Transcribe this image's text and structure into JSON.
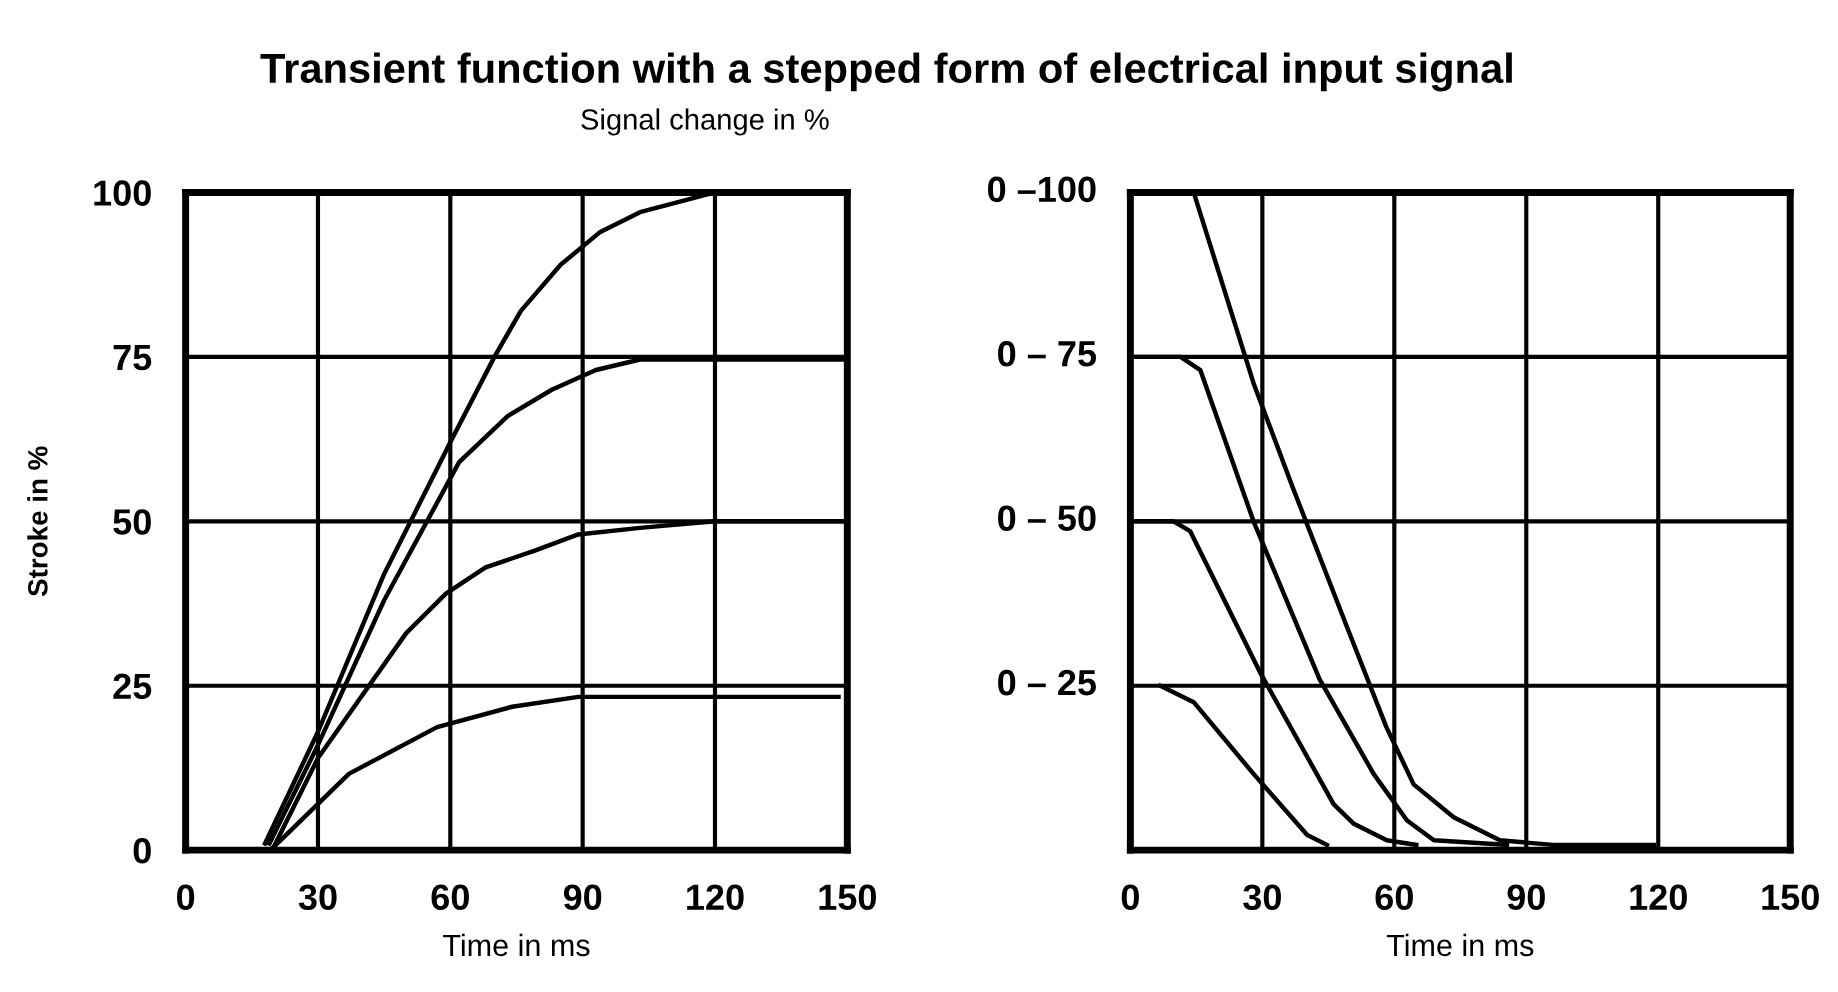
{
  "chart_data": [
    {
      "type": "line",
      "title": "Transient function with a stepped form of electrical input signal",
      "subtitle": "Signal change in %",
      "xlabel": "Time in ms",
      "ylabel": "Stroke in %",
      "xlim": [
        0,
        150
      ],
      "ylim": [
        0,
        100
      ],
      "xticks": [
        0,
        30,
        60,
        90,
        120,
        150
      ],
      "yticks": [
        0,
        25,
        50,
        75,
        100
      ],
      "grid": true,
      "legend": false,
      "marker": "none",
      "line_style": "solid",
      "series": [
        {
          "color": "#000000",
          "x": [
            18,
            30,
            45,
            60,
            70,
            76,
            85,
            94,
            103,
            120,
            150
          ],
          "values": [
            1,
            18,
            42,
            62,
            75,
            82,
            89,
            94,
            97,
            100,
            100
          ]
        },
        {
          "color": "#000000",
          "x": [
            19,
            30,
            45,
            62,
            73,
            83,
            93,
            103,
            150
          ],
          "values": [
            1,
            16,
            38,
            59,
            66,
            70,
            73,
            74.6,
            74.6
          ]
        },
        {
          "color": "#000000",
          "x": [
            20,
            30,
            50,
            59,
            68,
            79,
            89,
            103,
            120,
            150
          ],
          "values": [
            0.5,
            14,
            33,
            39,
            43,
            45.5,
            48,
            49,
            50,
            50
          ]
        },
        {
          "color": "#000000",
          "x": [
            20,
            37,
            57,
            74,
            89,
            148
          ],
          "values": [
            0.5,
            11.6,
            18.7,
            21.8,
            23.3,
            23.3
          ]
        }
      ]
    },
    {
      "type": "line",
      "xlabel": "Time in ms",
      "xlim": [
        0,
        150
      ],
      "ylim": [
        0,
        100
      ],
      "xticks": [
        0,
        30,
        60,
        90,
        120,
        150
      ],
      "yticks": [
        0,
        25,
        50,
        75,
        100
      ],
      "tick_labels": "x",
      "ref_lines": [
        {
          "axis": "y",
          "value": 100,
          "label": "0 –100",
          "color": "#000000"
        },
        {
          "axis": "y",
          "value": 75,
          "label": "0 – 75",
          "color": "#000000"
        },
        {
          "axis": "y",
          "value": 50,
          "label": "0 – 50",
          "color": "#000000"
        },
        {
          "axis": "y",
          "value": 25,
          "label": "0 – 25",
          "color": "#000000"
        }
      ],
      "grid": "x",
      "legend": false,
      "marker": "none",
      "line_style": "solid",
      "series": [
        {
          "color": "#000000",
          "x": [
            0,
            14.4,
            28,
            37,
            49.2,
            58.2,
            64.4,
            73.5,
            84,
            96,
            119
          ],
          "values": [
            100,
            100,
            71,
            55,
            34,
            18.7,
            10,
            5,
            1.5,
            0.8,
            0.8
          ]
        },
        {
          "color": "#000000",
          "x": [
            0,
            11.4,
            15.9,
            28,
            43,
            55.3,
            62.9,
            69,
            85.6
          ],
          "values": [
            75,
            75,
            73,
            50,
            26,
            11.6,
            4.5,
            1.5,
            0.8
          ]
        },
        {
          "color": "#000000",
          "x": [
            0,
            9.8,
            13.6,
            29.5,
            46.2,
            50.8,
            58.3,
            65
          ],
          "values": [
            50,
            50,
            48.5,
            27,
            7,
            4,
            1.5,
            0.8
          ]
        },
        {
          "color": "#000000",
          "x": [
            6.8,
            14.4,
            28,
            40.2,
            44.7
          ],
          "values": [
            25,
            22.5,
            11.6,
            2.3,
            0.8
          ]
        }
      ]
    }
  ]
}
